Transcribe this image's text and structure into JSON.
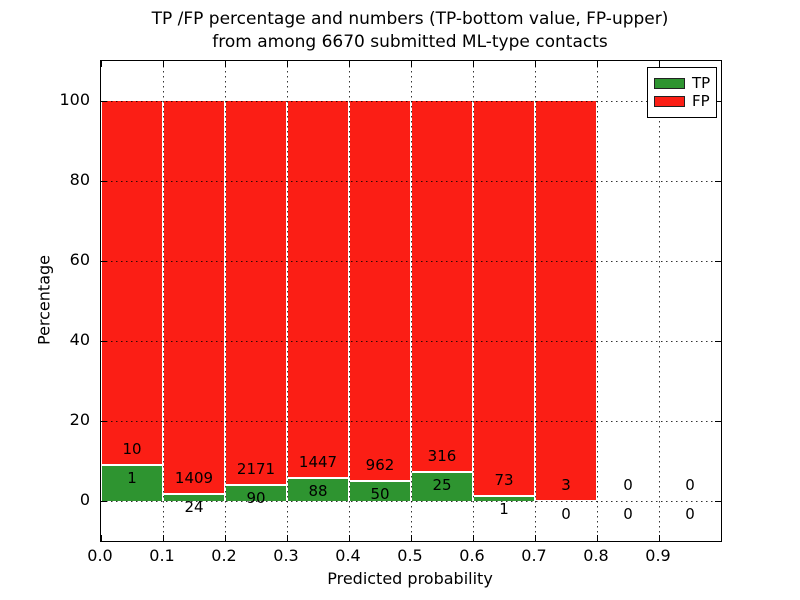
{
  "header": {
    "title_line1": "TP /FP percentage and numbers (TP-bottom value, FP-upper)",
    "title_line2": "from among 6670 submitted ML-type contacts"
  },
  "chart_data": {
    "type": "bar",
    "stacked": true,
    "normalized": "each bin scaled so TP+FP = 100%",
    "title": "TP /FP percentage and numbers (TP-bottom value, FP-upper) from among 6670 submitted ML-type contacts",
    "xlabel": "Predicted probability",
    "ylabel": "Percentage",
    "xlim": [
      0.0,
      1.0
    ],
    "ylim": [
      -10,
      110
    ],
    "x_tick_values": [
      0.0,
      0.1,
      0.2,
      0.3,
      0.4,
      0.5,
      0.6,
      0.7,
      0.8,
      0.9
    ],
    "x_tick_labels": [
      "0.0",
      "0.1",
      "0.2",
      "0.3",
      "0.4",
      "0.5",
      "0.6",
      "0.7",
      "0.8",
      "0.9"
    ],
    "y_tick_values": [
      0,
      20,
      40,
      60,
      80,
      100
    ],
    "y_tick_labels": [
      "0",
      "20",
      "40",
      "60",
      "80",
      "100"
    ],
    "grid": {
      "style": "dotted",
      "color": "#000000",
      "x_values": [
        0.1,
        0.2,
        0.3,
        0.4,
        0.5,
        0.6,
        0.7,
        0.8,
        0.9
      ],
      "y_values": [
        0,
        20,
        40,
        60,
        80,
        100
      ]
    },
    "bin_edges": [
      0.0,
      0.1,
      0.2,
      0.3,
      0.4,
      0.5,
      0.6,
      0.7,
      0.8,
      0.9,
      1.0
    ],
    "series": [
      {
        "name": "TP",
        "color": "#2e9430",
        "counts": [
          1,
          24,
          90,
          88,
          50,
          25,
          1,
          0,
          0,
          0
        ]
      },
      {
        "name": "FP",
        "color": "#fb1e15",
        "counts": [
          10,
          1409,
          2171,
          1447,
          962,
          316,
          73,
          3,
          0,
          0
        ]
      }
    ],
    "tp_percent_of_bin": [
      9.09,
      1.67,
      3.98,
      5.73,
      4.94,
      7.33,
      1.35,
      0.0,
      0.0,
      0.0
    ],
    "total_submitted": 6670,
    "legend": {
      "position": "upper right",
      "entries": [
        "TP",
        "FP"
      ]
    }
  }
}
